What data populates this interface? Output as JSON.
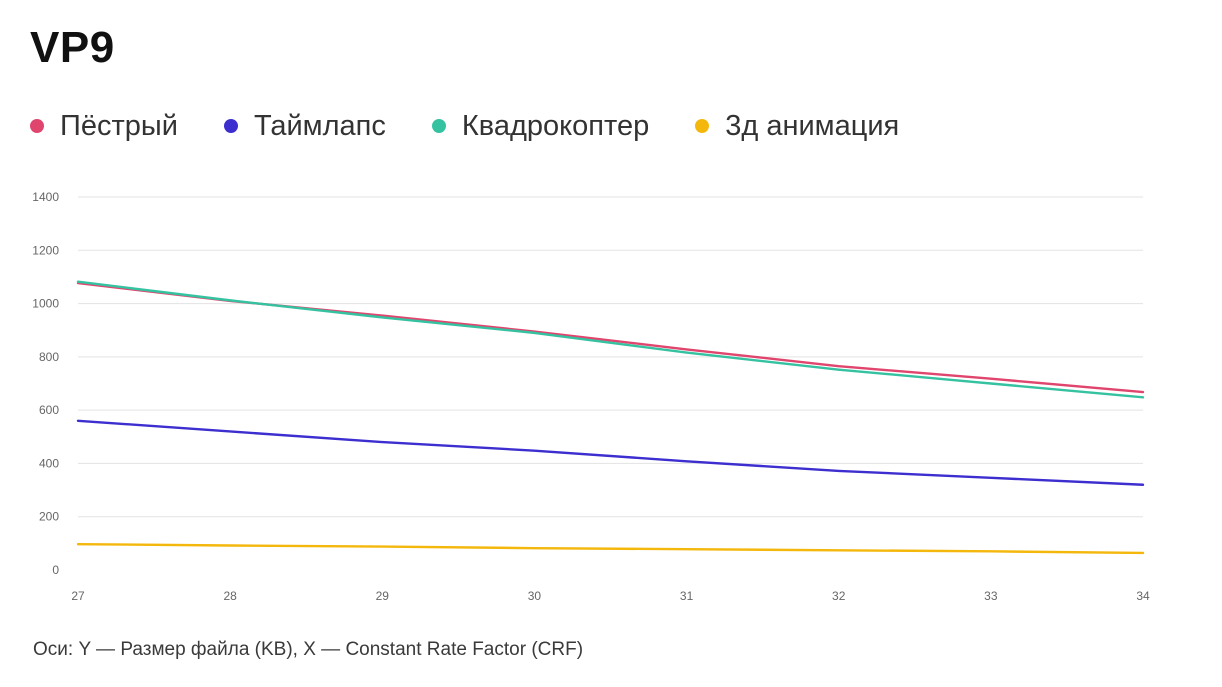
{
  "title": "VP9",
  "axes_note": "Оси: Y — Размер файла (KB), X — Constant Rate Factor (CRF)",
  "chart_data": {
    "type": "line",
    "title": "VP9",
    "xlabel": "",
    "ylabel": "",
    "x": [
      27,
      28,
      29,
      30,
      31,
      32,
      33,
      34
    ],
    "xlim": [
      27,
      34
    ],
    "ylim": [
      0,
      1400
    ],
    "y_ticks": [
      0,
      200,
      400,
      600,
      800,
      1000,
      1200,
      1400
    ],
    "grid": true,
    "legend_position": "top",
    "series": [
      {
        "name": "Пёстрый",
        "color": "#e0456e",
        "values": [
          1077,
          1010,
          955,
          895,
          828,
          765,
          718,
          668
        ]
      },
      {
        "name": "Таймлапс",
        "color": "#3d2ecf",
        "values": [
          560,
          520,
          480,
          448,
          408,
          372,
          346,
          320
        ]
      },
      {
        "name": "Квадрокоптер",
        "color": "#35c2a1",
        "values": [
          1082,
          1012,
          948,
          890,
          816,
          752,
          700,
          648
        ]
      },
      {
        "name": "3д анимация",
        "color": "#f4b70c",
        "values": [
          97,
          92,
          88,
          82,
          78,
          74,
          70,
          64
        ]
      }
    ]
  }
}
